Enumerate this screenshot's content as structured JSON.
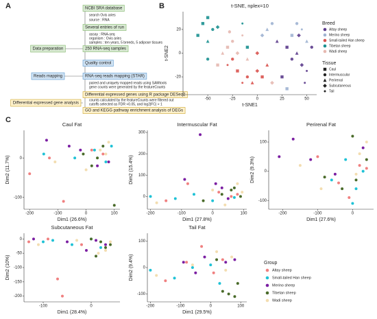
{
  "panel_labels": [
    "A",
    "B",
    "C"
  ],
  "diagram": {
    "stages": [
      "Data preparation",
      "Reads mapping",
      "Differential expressed gene analysis"
    ],
    "steps": [
      "NCBI SRA database",
      "Several entries of run",
      "250 RNA-seq  samples",
      "Quality control",
      "RNA-seq reads mapping (STAR)",
      "Differential expressed genes using R package DESeq2",
      "GO and KEGG pathway enrichment analysis of DEGs"
    ],
    "notes": [
      [
        "search Ovis aries",
        "source : RNA"
      ],
      [
        "assay : RNA-seq",
        "organism : Ovis aries",
        "samples : ten years,  5 breeds,  5 adipose tissues"
      ],
      [
        "paired and uniquely mapped reads using SAMtools",
        "gene counts were generated by the featureCounts"
      ],
      [
        "counts calculated by the featureCounts were filtered out",
        "cutoffs selected as FDR <0.05, and log2|FC| > 1"
      ]
    ]
  },
  "chart_data": [
    {
      "type": "tsne",
      "title": "t-SNE, nplex=10",
      "x_label": "t-SNE1",
      "y_label": "t-SNE2",
      "xlim": [
        -75,
        60
      ],
      "ylim": [
        -35,
        35
      ],
      "xticks": [
        -50,
        -25,
        0,
        25,
        50
      ],
      "yticks": [
        -20,
        0,
        20
      ],
      "legend_title": "Breed",
      "tissue_title": "Tissue",
      "tissues": [
        {
          "name": "Caul",
          "shape": "square"
        },
        {
          "name": "Intermuscular",
          "shape": "circle"
        },
        {
          "name": "Perirenal",
          "shape": "triangle"
        },
        {
          "name": "Subcutaneous",
          "shape": "diamond"
        },
        {
          "name": "Tail",
          "shape": "dot"
        }
      ],
      "series": [
        {
          "name": "Altay sheep",
          "color": "#5c3c8c",
          "x": [
            30,
            35,
            40,
            45,
            50,
            25,
            55,
            20,
            42,
            48
          ],
          "y": [
            5,
            -5,
            0,
            -10,
            -15,
            -20,
            5,
            10,
            15,
            -25
          ],
          "tissue": [
            "Caul",
            "Intermuscular",
            "Perirenal",
            "Subcutaneous",
            "Tail",
            "Caul",
            "Intermuscular",
            "Perirenal",
            "Subcutaneous",
            "Tail"
          ]
        },
        {
          "name": "Merino sheep",
          "color": "#9fb3d1",
          "x": [
            35,
            40,
            10,
            5,
            45,
            30,
            15,
            50
          ],
          "y": [
            15,
            25,
            20,
            15,
            20,
            -30,
            25,
            10
          ],
          "tissue": [
            "Caul",
            "Intermuscular",
            "Perirenal",
            "Subcutaneous",
            "Tail",
            "Caul",
            "Intermuscular",
            "Perirenal"
          ]
        },
        {
          "name": "Small-tailed Han sheep",
          "color": "#d9534f",
          "x": [
            -20,
            -10,
            -5,
            0,
            -15,
            5,
            -25,
            10,
            0,
            -30
          ],
          "y": [
            -15,
            -20,
            -25,
            -15,
            -25,
            -20,
            -5,
            -10,
            0,
            -10
          ],
          "tissue": [
            "Caul",
            "Intermuscular",
            "Perirenal",
            "Subcutaneous",
            "Tail",
            "Caul",
            "Intermuscular",
            "Perirenal",
            "Subcutaneous",
            "Tail"
          ]
        },
        {
          "name": "Tibetan sheep",
          "color": "#1b9090",
          "x": [
            -55,
            -50,
            -45,
            -60,
            -50,
            -40,
            -15,
            -10,
            -50
          ],
          "y": [
            25,
            30,
            20,
            15,
            10,
            22,
            25,
            5,
            -5
          ],
          "tissue": [
            "Caul",
            "Caul",
            "Intermuscular",
            "Caul",
            "Perirenal",
            "Subcutaneous",
            "Tail",
            "Caul",
            "Intermuscular"
          ]
        },
        {
          "name": "Wadi sheep",
          "color": "#e6b8b0",
          "x": [
            -30,
            -25,
            -35,
            -20,
            -15,
            -40,
            -28,
            -10,
            15
          ],
          "y": [
            5,
            10,
            0,
            0,
            15,
            -10,
            18,
            -5,
            -25
          ],
          "tissue": [
            "Caul",
            "Intermuscular",
            "Perirenal",
            "Subcutaneous",
            "Tail",
            "Caul",
            "Intermuscular",
            "Perirenal",
            "Subcutaneous"
          ]
        }
      ]
    },
    {
      "type": "scatter",
      "title": "Caul Fat",
      "x_label": "Dim1 (26.6%)",
      "y_label": "Dim2 (11.7%)",
      "xlim": [
        -220,
        120
      ],
      "ylim": [
        -130,
        70
      ],
      "xticks": [
        -200,
        -100,
        0,
        100
      ],
      "yticks": [
        -100,
        0
      ],
      "legend_title": "Group",
      "series": [
        {
          "name": "Altay sheep",
          "color": "#f08080",
          "x": [
            -200,
            -80,
            20,
            60,
            -130
          ],
          "y": [
            -40,
            -110,
            20,
            10,
            0
          ]
        },
        {
          "name": "Small-tailed Han sheep",
          "color": "#1fc2d6",
          "x": [
            -40,
            30,
            70,
            90,
            -150
          ],
          "y": [
            0,
            20,
            -10,
            30,
            10
          ]
        },
        {
          "name": "Merino sheep",
          "color": "#7b1fa2",
          "x": [
            -140,
            -60,
            -20,
            40,
            80
          ],
          "y": [
            45,
            30,
            20,
            -20,
            -10
          ]
        },
        {
          "name": "Tibetan sheep",
          "color": "#4a6b2a",
          "x": [
            40,
            60,
            100,
            -10,
            20
          ],
          "y": [
            0,
            30,
            -120,
            10,
            -20
          ]
        },
        {
          "name": "Wadi sheep",
          "color": "#f3ddb0",
          "x": [
            50,
            80,
            -110,
            0,
            70
          ],
          "y": [
            20,
            40,
            -10,
            -30,
            10
          ]
        }
      ]
    },
    {
      "type": "scatter",
      "title": "Intermuscular Fat",
      "x_label": "Dim1 (27.8%)",
      "y_label": "Dim2 (15.4%)",
      "xlim": [
        -210,
        110
      ],
      "ylim": [
        -60,
        310
      ],
      "xticks": [
        -200,
        -100,
        0,
        100
      ],
      "yticks": [
        0,
        100,
        200,
        300
      ],
      "series": [
        {
          "name": "Altay sheep",
          "color": "#f08080",
          "x": [
            -150,
            -80,
            20,
            60,
            80
          ],
          "y": [
            -20,
            60,
            20,
            0,
            10
          ]
        },
        {
          "name": "Small-tailed Han sheep",
          "color": "#1fc2d6",
          "x": [
            -200,
            -120,
            -60,
            0,
            70
          ],
          "y": [
            0,
            -10,
            10,
            -20,
            -5
          ]
        },
        {
          "name": "Merino sheep",
          "color": "#7b1fa2",
          "x": [
            -40,
            10,
            50,
            -90,
            30
          ],
          "y": [
            290,
            60,
            -10,
            80,
            40
          ]
        },
        {
          "name": "Tibetan sheep",
          "color": "#4a6b2a",
          "x": [
            30,
            60,
            90,
            -30,
            70
          ],
          "y": [
            10,
            30,
            0,
            -20,
            40
          ]
        },
        {
          "name": "Wadi sheep",
          "color": "#f3ddb0",
          "x": [
            80,
            95,
            -180,
            40,
            0
          ],
          "y": [
            60,
            20,
            -30,
            -40,
            30
          ]
        }
      ]
    },
    {
      "type": "scatter",
      "title": "Perirenal Fat",
      "x_label": "Dim1 (27.6%)",
      "y_label": "Dim2 (9.3%)",
      "xlim": [
        -240,
        60
      ],
      "ylim": [
        -130,
        140
      ],
      "xticks": [
        -200,
        -100,
        0
      ],
      "yticks": [
        -100,
        0,
        100
      ],
      "series": [
        {
          "name": "Altay sheep",
          "color": "#f08080",
          "x": [
            -100,
            -40,
            20,
            -10,
            40
          ],
          "y": [
            50,
            -40,
            20,
            -90,
            10
          ]
        },
        {
          "name": "Small-tailed Han sheep",
          "color": "#1fc2d6",
          "x": [
            -60,
            0,
            30,
            -20,
            10
          ],
          "y": [
            -30,
            -110,
            0,
            40,
            -60
          ]
        },
        {
          "name": "Merino sheep",
          "color": "#7b1fa2",
          "x": [
            -210,
            -170,
            -120,
            -50,
            30
          ],
          "y": [
            50,
            110,
            40,
            -10,
            80
          ]
        },
        {
          "name": "Tibetan sheep",
          "color": "#4a6b2a",
          "x": [
            -30,
            10,
            40,
            0,
            -80
          ],
          "y": [
            -60,
            -30,
            40,
            120,
            -20
          ]
        },
        {
          "name": "Wadi sheep",
          "color": "#f3ddb0",
          "x": [
            -150,
            20,
            40,
            -90,
            10
          ],
          "y": [
            20,
            60,
            100,
            -60,
            -10
          ]
        }
      ]
    },
    {
      "type": "scatter",
      "title": "Subcutaneous Fat",
      "x_label": "Dim1 (28.4%)",
      "y_label": "Dim2 (10%)",
      "xlim": [
        -140,
        60
      ],
      "ylim": [
        -220,
        20
      ],
      "xticks": [
        -100,
        0
      ],
      "yticks": [
        -200,
        -150,
        -100,
        -50,
        0
      ],
      "series": [
        {
          "name": "Altay sheep",
          "color": "#f08080",
          "x": [
            -130,
            -70,
            -60,
            -20,
            -90
          ],
          "y": [
            -10,
            -140,
            -200,
            -20,
            0
          ]
        },
        {
          "name": "Small-tailed Han sheep",
          "color": "#1fc2d6",
          "x": [
            -100,
            -40,
            0,
            20,
            -80
          ],
          "y": [
            -10,
            -20,
            0,
            -30,
            -5
          ]
        },
        {
          "name": "Merino sheep",
          "color": "#7b1fa2",
          "x": [
            -120,
            -50,
            10,
            -10,
            30
          ],
          "y": [
            0,
            -10,
            -5,
            -40,
            -20
          ]
        },
        {
          "name": "Tibetan sheep",
          "color": "#4a6b2a",
          "x": [
            20,
            30,
            40,
            10,
            0
          ],
          "y": [
            -10,
            -30,
            -20,
            -60,
            0
          ]
        },
        {
          "name": "Wadi sheep",
          "color": "#f3ddb0",
          "x": [
            -110,
            30,
            -30,
            40,
            15
          ],
          "y": [
            -20,
            -40,
            -5,
            -10,
            -50
          ]
        }
      ]
    },
    {
      "type": "scatter",
      "title": "Tail Fat",
      "x_label": "Dim1 (29.5%)",
      "y_label": "Dim2 (9.4%)",
      "xlim": [
        -210,
        120
      ],
      "ylim": [
        -130,
        130
      ],
      "xticks": [
        -200,
        -100,
        0,
        100
      ],
      "yticks": [
        -100,
        0,
        100
      ],
      "series": [
        {
          "name": "Altay sheep",
          "color": "#f08080",
          "x": [
            -30,
            -150,
            10,
            -80,
            40
          ],
          "y": [
            80,
            -50,
            -20,
            20,
            30
          ]
        },
        {
          "name": "Small-tailed Han sheep",
          "color": "#1fc2d6",
          "x": [
            -120,
            -200,
            -60,
            30,
            0
          ],
          "y": [
            -40,
            -10,
            0,
            -60,
            10
          ]
        },
        {
          "name": "Merino sheep",
          "color": "#7b1fa2",
          "x": [
            -90,
            -20,
            50,
            80,
            -50
          ],
          "y": [
            20,
            40,
            20,
            30,
            -20
          ]
        },
        {
          "name": "Tibetan sheep",
          "color": "#4a6b2a",
          "x": [
            40,
            60,
            80,
            90,
            20
          ],
          "y": [
            -90,
            -100,
            -110,
            -60,
            30
          ]
        },
        {
          "name": "Wadi sheep",
          "color": "#f3ddb0",
          "x": [
            -180,
            -60,
            20,
            50,
            70
          ],
          "y": [
            -30,
            10,
            60,
            -10,
            40
          ]
        }
      ]
    }
  ]
}
